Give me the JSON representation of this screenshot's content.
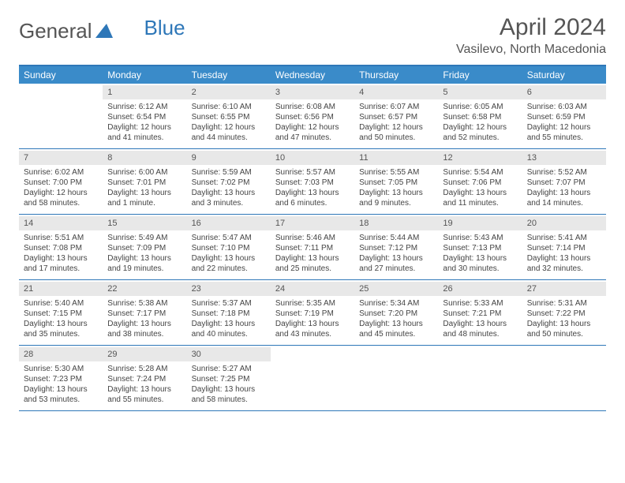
{
  "logo": {
    "text1": "General",
    "text2": "Blue"
  },
  "title": "April 2024",
  "location": "Vasilevo, North Macedonia",
  "colors": {
    "header_bg": "#3a8bc9",
    "border": "#2e77b8",
    "daynum_bg": "#e8e8e8",
    "text": "#444444"
  },
  "day_names": [
    "Sunday",
    "Monday",
    "Tuesday",
    "Wednesday",
    "Thursday",
    "Friday",
    "Saturday"
  ],
  "weeks": [
    [
      {
        "n": "",
        "sr": "",
        "ss": "",
        "dl": ""
      },
      {
        "n": "1",
        "sr": "Sunrise: 6:12 AM",
        "ss": "Sunset: 6:54 PM",
        "dl": "Daylight: 12 hours and 41 minutes."
      },
      {
        "n": "2",
        "sr": "Sunrise: 6:10 AM",
        "ss": "Sunset: 6:55 PM",
        "dl": "Daylight: 12 hours and 44 minutes."
      },
      {
        "n": "3",
        "sr": "Sunrise: 6:08 AM",
        "ss": "Sunset: 6:56 PM",
        "dl": "Daylight: 12 hours and 47 minutes."
      },
      {
        "n": "4",
        "sr": "Sunrise: 6:07 AM",
        "ss": "Sunset: 6:57 PM",
        "dl": "Daylight: 12 hours and 50 minutes."
      },
      {
        "n": "5",
        "sr": "Sunrise: 6:05 AM",
        "ss": "Sunset: 6:58 PM",
        "dl": "Daylight: 12 hours and 52 minutes."
      },
      {
        "n": "6",
        "sr": "Sunrise: 6:03 AM",
        "ss": "Sunset: 6:59 PM",
        "dl": "Daylight: 12 hours and 55 minutes."
      }
    ],
    [
      {
        "n": "7",
        "sr": "Sunrise: 6:02 AM",
        "ss": "Sunset: 7:00 PM",
        "dl": "Daylight: 12 hours and 58 minutes."
      },
      {
        "n": "8",
        "sr": "Sunrise: 6:00 AM",
        "ss": "Sunset: 7:01 PM",
        "dl": "Daylight: 13 hours and 1 minute."
      },
      {
        "n": "9",
        "sr": "Sunrise: 5:59 AM",
        "ss": "Sunset: 7:02 PM",
        "dl": "Daylight: 13 hours and 3 minutes."
      },
      {
        "n": "10",
        "sr": "Sunrise: 5:57 AM",
        "ss": "Sunset: 7:03 PM",
        "dl": "Daylight: 13 hours and 6 minutes."
      },
      {
        "n": "11",
        "sr": "Sunrise: 5:55 AM",
        "ss": "Sunset: 7:05 PM",
        "dl": "Daylight: 13 hours and 9 minutes."
      },
      {
        "n": "12",
        "sr": "Sunrise: 5:54 AM",
        "ss": "Sunset: 7:06 PM",
        "dl": "Daylight: 13 hours and 11 minutes."
      },
      {
        "n": "13",
        "sr": "Sunrise: 5:52 AM",
        "ss": "Sunset: 7:07 PM",
        "dl": "Daylight: 13 hours and 14 minutes."
      }
    ],
    [
      {
        "n": "14",
        "sr": "Sunrise: 5:51 AM",
        "ss": "Sunset: 7:08 PM",
        "dl": "Daylight: 13 hours and 17 minutes."
      },
      {
        "n": "15",
        "sr": "Sunrise: 5:49 AM",
        "ss": "Sunset: 7:09 PM",
        "dl": "Daylight: 13 hours and 19 minutes."
      },
      {
        "n": "16",
        "sr": "Sunrise: 5:47 AM",
        "ss": "Sunset: 7:10 PM",
        "dl": "Daylight: 13 hours and 22 minutes."
      },
      {
        "n": "17",
        "sr": "Sunrise: 5:46 AM",
        "ss": "Sunset: 7:11 PM",
        "dl": "Daylight: 13 hours and 25 minutes."
      },
      {
        "n": "18",
        "sr": "Sunrise: 5:44 AM",
        "ss": "Sunset: 7:12 PM",
        "dl": "Daylight: 13 hours and 27 minutes."
      },
      {
        "n": "19",
        "sr": "Sunrise: 5:43 AM",
        "ss": "Sunset: 7:13 PM",
        "dl": "Daylight: 13 hours and 30 minutes."
      },
      {
        "n": "20",
        "sr": "Sunrise: 5:41 AM",
        "ss": "Sunset: 7:14 PM",
        "dl": "Daylight: 13 hours and 32 minutes."
      }
    ],
    [
      {
        "n": "21",
        "sr": "Sunrise: 5:40 AM",
        "ss": "Sunset: 7:15 PM",
        "dl": "Daylight: 13 hours and 35 minutes."
      },
      {
        "n": "22",
        "sr": "Sunrise: 5:38 AM",
        "ss": "Sunset: 7:17 PM",
        "dl": "Daylight: 13 hours and 38 minutes."
      },
      {
        "n": "23",
        "sr": "Sunrise: 5:37 AM",
        "ss": "Sunset: 7:18 PM",
        "dl": "Daylight: 13 hours and 40 minutes."
      },
      {
        "n": "24",
        "sr": "Sunrise: 5:35 AM",
        "ss": "Sunset: 7:19 PM",
        "dl": "Daylight: 13 hours and 43 minutes."
      },
      {
        "n": "25",
        "sr": "Sunrise: 5:34 AM",
        "ss": "Sunset: 7:20 PM",
        "dl": "Daylight: 13 hours and 45 minutes."
      },
      {
        "n": "26",
        "sr": "Sunrise: 5:33 AM",
        "ss": "Sunset: 7:21 PM",
        "dl": "Daylight: 13 hours and 48 minutes."
      },
      {
        "n": "27",
        "sr": "Sunrise: 5:31 AM",
        "ss": "Sunset: 7:22 PM",
        "dl": "Daylight: 13 hours and 50 minutes."
      }
    ],
    [
      {
        "n": "28",
        "sr": "Sunrise: 5:30 AM",
        "ss": "Sunset: 7:23 PM",
        "dl": "Daylight: 13 hours and 53 minutes."
      },
      {
        "n": "29",
        "sr": "Sunrise: 5:28 AM",
        "ss": "Sunset: 7:24 PM",
        "dl": "Daylight: 13 hours and 55 minutes."
      },
      {
        "n": "30",
        "sr": "Sunrise: 5:27 AM",
        "ss": "Sunset: 7:25 PM",
        "dl": "Daylight: 13 hours and 58 minutes."
      },
      {
        "n": "",
        "sr": "",
        "ss": "",
        "dl": ""
      },
      {
        "n": "",
        "sr": "",
        "ss": "",
        "dl": ""
      },
      {
        "n": "",
        "sr": "",
        "ss": "",
        "dl": ""
      },
      {
        "n": "",
        "sr": "",
        "ss": "",
        "dl": ""
      }
    ]
  ]
}
